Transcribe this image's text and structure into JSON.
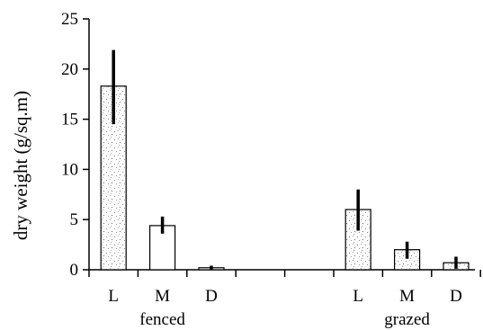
{
  "chart_data": {
    "type": "bar",
    "title": "",
    "ylabel": "dry weight (g/sq.m)",
    "xlabel": "",
    "ylim": [
      0,
      25
    ],
    "yticks": [
      0,
      5,
      10,
      15,
      20,
      25
    ],
    "groups": [
      {
        "name": "fenced",
        "bars": [
          {
            "category": "L",
            "value": 18.3,
            "error_low": 14.5,
            "error_high": 21.9,
            "fill": "stippled"
          },
          {
            "category": "M",
            "value": 4.4,
            "error_low": 3.6,
            "error_high": 5.3,
            "fill": "white"
          },
          {
            "category": "D",
            "value": 0.2,
            "error_low": 0.0,
            "error_high": 0.4,
            "fill": "white"
          }
        ]
      },
      {
        "name": "grazed",
        "bars": [
          {
            "category": "L",
            "value": 6.0,
            "error_low": 3.9,
            "error_high": 8.0,
            "fill": "stippled"
          },
          {
            "category": "M",
            "value": 2.0,
            "error_low": 1.1,
            "error_high": 2.8,
            "fill": "stippled"
          },
          {
            "category": "D",
            "value": 0.7,
            "error_low": 0.1,
            "error_high": 1.3,
            "fill": "stippled"
          }
        ]
      }
    ],
    "grid": false,
    "legend": "none"
  }
}
